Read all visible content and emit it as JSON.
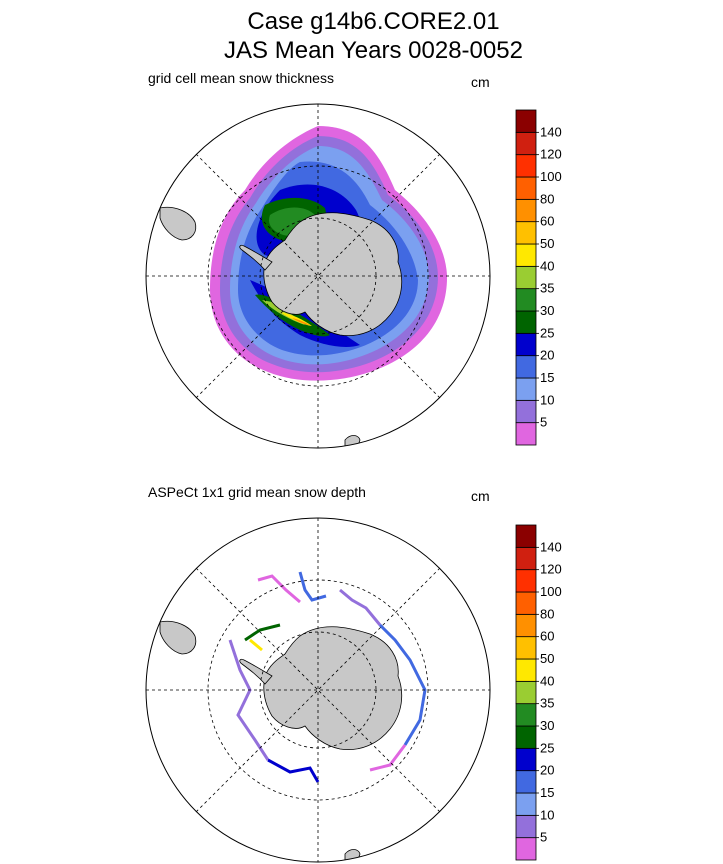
{
  "title": {
    "line1": "Case g14b6.CORE2.01",
    "line2": "JAS Mean   Years 0028-0052"
  },
  "colors": {
    "continent": "#c8c8c8",
    "grid_line": "#000000",
    "palette": [
      "#e066e0",
      "#9370db",
      "#7ba0f0",
      "#4169e1",
      "#0000cd",
      "#006400",
      "#228b22",
      "#9acd32",
      "#ffe800",
      "#ffc000",
      "#ff9000",
      "#ff6000",
      "#ff3000",
      "#d02010",
      "#8b0000"
    ]
  },
  "chart_data": [
    {
      "type": "heatmap",
      "projection": "south-polar-stereographic",
      "title": "grid cell mean snow thickness",
      "units": "cm",
      "colorbar": {
        "levels": [
          5,
          10,
          15,
          20,
          25,
          30,
          35,
          40,
          50,
          60,
          80,
          100,
          120,
          140
        ],
        "labels": [
          "5",
          "10",
          "15",
          "20",
          "25",
          "30",
          "35",
          "40",
          "50",
          "60",
          "80",
          "100",
          "120",
          "140"
        ]
      },
      "field_summary": "Snow thickness ring around Antarctica; mostly 5-20 cm, 25-40 cm in Weddell Sea and Bellingshausen/Amundsen, up to 50-60 cm locally"
    },
    {
      "type": "heatmap",
      "projection": "south-polar-stereographic",
      "title": "ASPeCt 1x1 grid mean snow depth",
      "units": "cm",
      "colorbar": {
        "levels": [
          5,
          10,
          15,
          20,
          25,
          30,
          35,
          40,
          50,
          60,
          80,
          100,
          120,
          140
        ],
        "labels": [
          "5",
          "10",
          "15",
          "20",
          "25",
          "30",
          "35",
          "40",
          "50",
          "60",
          "80",
          "100",
          "120",
          "140"
        ]
      },
      "field_summary": "Sparse ship-track observations along ice edge, values mostly 5-25 cm"
    }
  ]
}
